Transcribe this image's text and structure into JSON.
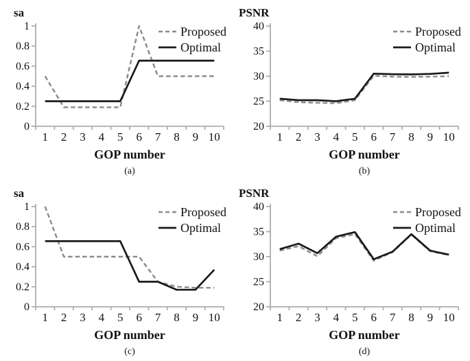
{
  "figure": {
    "background": "#ffffff",
    "colors": {
      "proposed": "#8a8a8a",
      "optimal": "#1a1a1a",
      "axis": "#adadad",
      "text": "#111111"
    },
    "legend": {
      "position": "top-right",
      "labels": [
        "Proposed",
        "Optimal"
      ]
    }
  },
  "chart_data": [
    {
      "id": "a",
      "type": "line",
      "title": "sa",
      "xlabel": "GOP number",
      "caption": "(a)",
      "x": [
        1,
        2,
        3,
        4,
        5,
        6,
        7,
        8,
        9,
        10
      ],
      "ylim": [
        0,
        1
      ],
      "yticks": [
        0,
        0.2,
        0.4,
        0.6,
        0.8,
        1
      ],
      "ytick_labels": [
        "0",
        "0.2",
        "0.4",
        "0.6",
        "0.8",
        "1"
      ],
      "grid": false,
      "legend_position": "top-right",
      "series": [
        {
          "name": "Proposed",
          "style": "dashed",
          "color_key": "proposed",
          "values": [
            0.5,
            0.19,
            0.19,
            0.19,
            0.19,
            1.0,
            0.5,
            0.5,
            0.5,
            0.5
          ]
        },
        {
          "name": "Optimal",
          "style": "solid",
          "color_key": "optimal",
          "values": [
            0.25,
            0.25,
            0.25,
            0.25,
            0.25,
            0.655,
            0.655,
            0.655,
            0.655,
            0.655
          ]
        }
      ]
    },
    {
      "id": "b",
      "type": "line",
      "title": "PSNR",
      "xlabel": "GOP number",
      "caption": "(b)",
      "x": [
        1,
        2,
        3,
        4,
        5,
        6,
        7,
        8,
        9,
        10
      ],
      "ylim": [
        20,
        40
      ],
      "yticks": [
        20,
        25,
        30,
        35,
        40
      ],
      "ytick_labels": [
        "20",
        "25",
        "30",
        "35",
        "40"
      ],
      "grid": false,
      "legend_position": "top-right",
      "series": [
        {
          "name": "Proposed",
          "style": "dashed",
          "color_key": "proposed",
          "values": [
            25.2,
            24.8,
            24.7,
            24.6,
            25.2,
            30.1,
            29.9,
            29.85,
            29.9,
            30.0
          ]
        },
        {
          "name": "Optimal",
          "style": "solid",
          "color_key": "optimal",
          "values": [
            25.5,
            25.2,
            25.2,
            25.0,
            25.5,
            30.5,
            30.4,
            30.35,
            30.45,
            30.7
          ]
        }
      ]
    },
    {
      "id": "c",
      "type": "line",
      "title": "sa",
      "xlabel": "GOP number",
      "caption": "(c)",
      "x": [
        1,
        2,
        3,
        4,
        5,
        6,
        7,
        8,
        9,
        10
      ],
      "ylim": [
        0,
        1
      ],
      "yticks": [
        0,
        0.2,
        0.4,
        0.6,
        0.8,
        1
      ],
      "ytick_labels": [
        "0",
        "0.2",
        "0.4",
        "0.6",
        "0.8",
        "1"
      ],
      "grid": false,
      "legend_position": "top-right",
      "series": [
        {
          "name": "Proposed",
          "style": "dashed",
          "color_key": "proposed",
          "values": [
            1.0,
            0.5,
            0.5,
            0.5,
            0.5,
            0.5,
            0.25,
            0.2,
            0.19,
            0.19
          ]
        },
        {
          "name": "Optimal",
          "style": "solid",
          "color_key": "optimal",
          "values": [
            0.655,
            0.655,
            0.655,
            0.655,
            0.655,
            0.25,
            0.25,
            0.17,
            0.17,
            0.37
          ]
        }
      ]
    },
    {
      "id": "d",
      "type": "line",
      "title": "PSNR",
      "xlabel": "GOP number",
      "caption": "(d)",
      "x": [
        1,
        2,
        3,
        4,
        5,
        6,
        7,
        8,
        9,
        10
      ],
      "ylim": [
        20,
        40
      ],
      "yticks": [
        20,
        25,
        30,
        35,
        40
      ],
      "ytick_labels": [
        "20",
        "25",
        "30",
        "35",
        "40"
      ],
      "grid": false,
      "legend_position": "top-right",
      "series": [
        {
          "name": "Proposed",
          "style": "dashed",
          "color_key": "proposed",
          "values": [
            31.2,
            32.1,
            30.1,
            33.7,
            34.5,
            29.2,
            30.9,
            34.4,
            31.1,
            30.3
          ]
        },
        {
          "name": "Optimal",
          "style": "solid",
          "color_key": "optimal",
          "values": [
            31.5,
            32.6,
            30.7,
            34.0,
            34.9,
            29.5,
            31.0,
            34.5,
            31.2,
            30.4
          ]
        }
      ]
    }
  ]
}
